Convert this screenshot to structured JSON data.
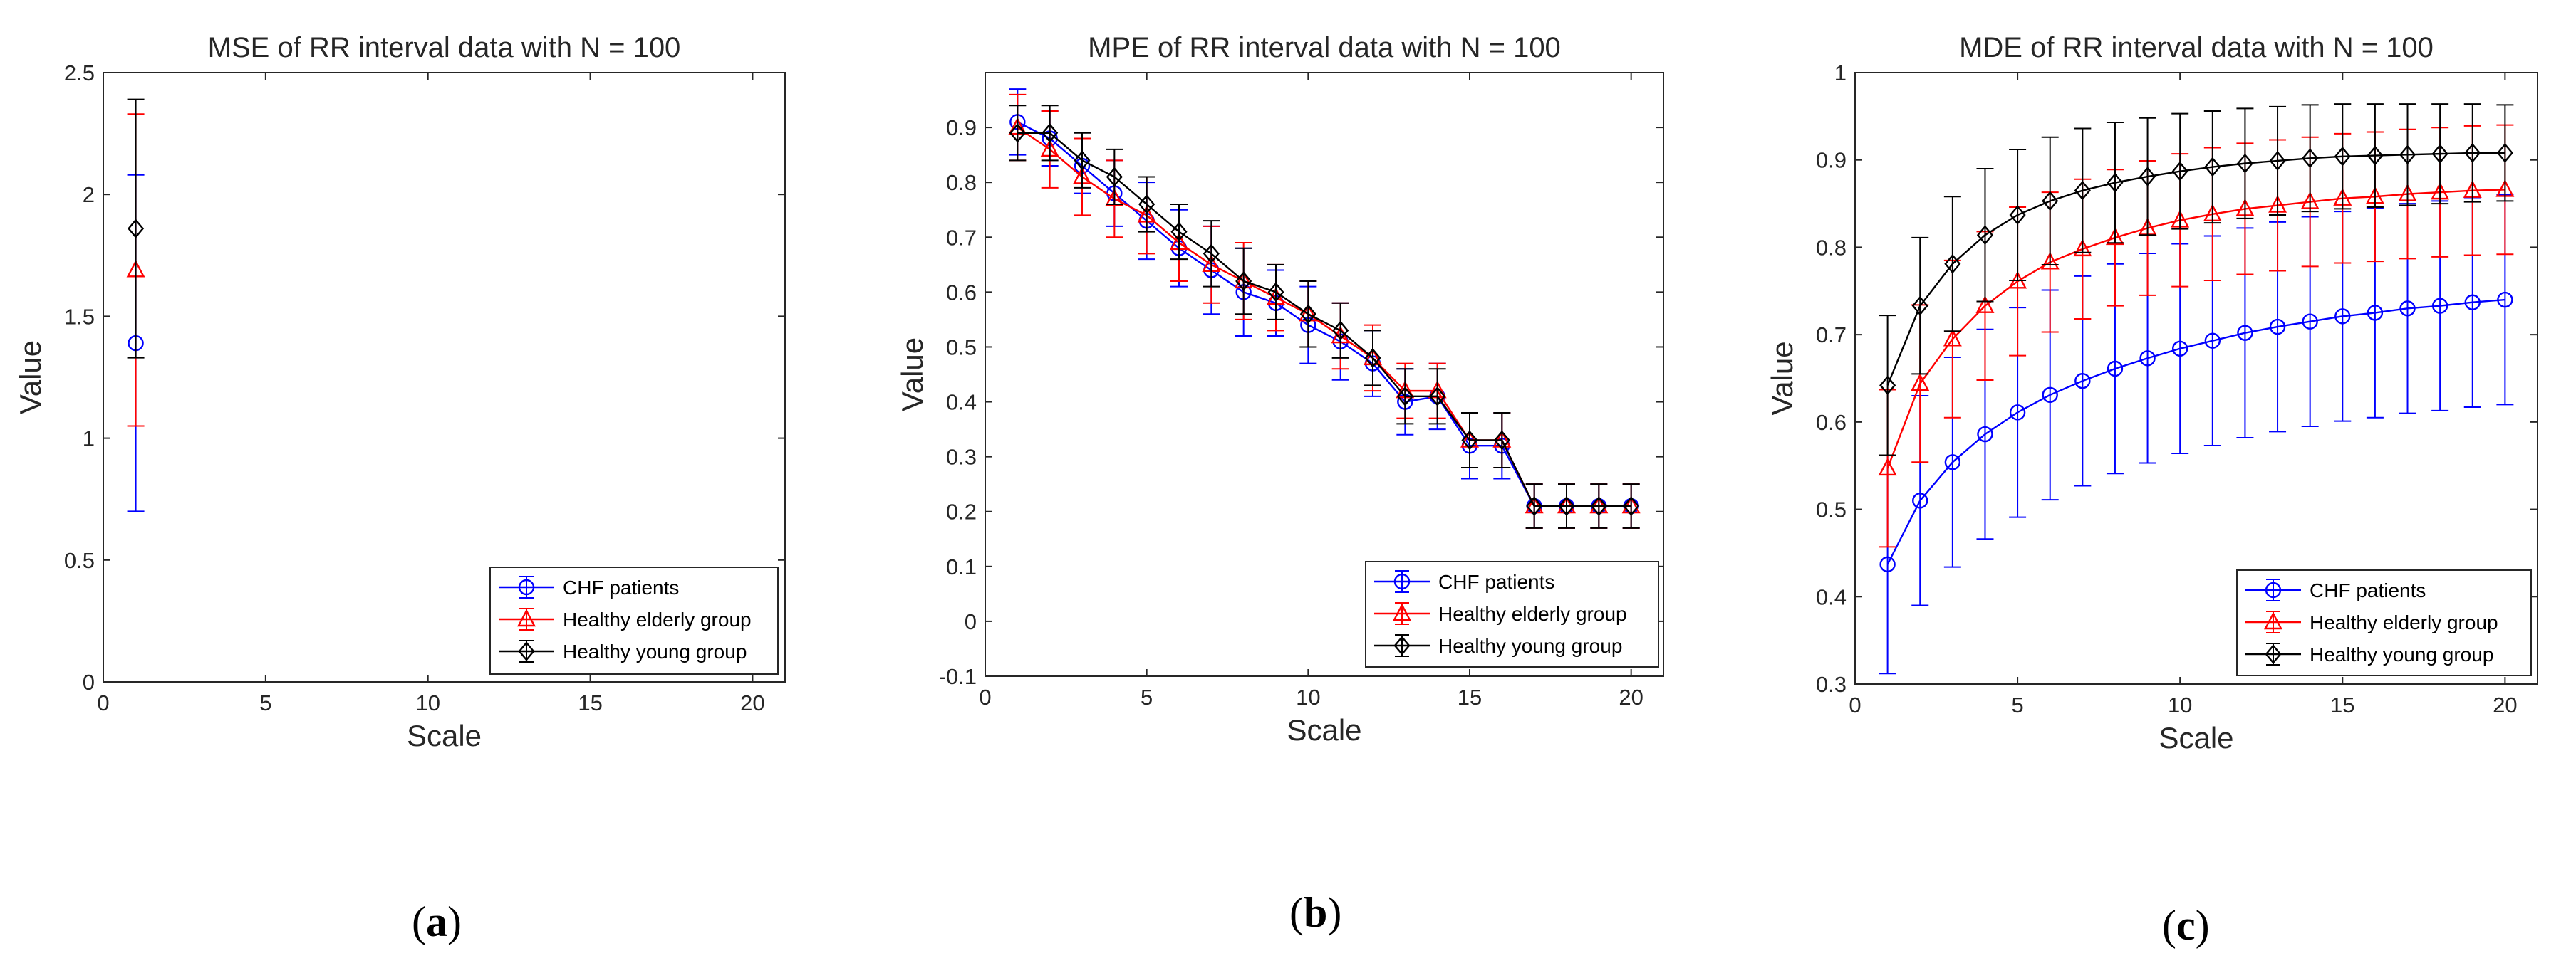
{
  "chart_data": [
    {
      "type": "line",
      "panel_label": "a",
      "title": "MSE of RR interval data with N = 100",
      "xlabel": "Scale",
      "ylabel": "Value",
      "xlim": [
        0,
        21
      ],
      "ylim": [
        0,
        2.5
      ],
      "xticks": [
        0,
        5,
        10,
        15,
        20
      ],
      "yticks": [
        0,
        0.5,
        1,
        1.5,
        2,
        2.5
      ],
      "ytick_labels": [
        "0",
        "0.5",
        "1",
        "1.5",
        "2",
        "2.5"
      ],
      "legend_position": "bottom-right",
      "x": [
        1
      ],
      "series": [
        {
          "name": "CHF patients",
          "color": "#0000ff",
          "marker": "circle",
          "values": [
            1.39
          ],
          "err": [
            0.69
          ]
        },
        {
          "name": "Healthy elderly group",
          "color": "#ff0000",
          "marker": "triangle",
          "values": [
            1.69
          ],
          "err": [
            0.64
          ]
        },
        {
          "name": "Healthy young group",
          "color": "#000000",
          "marker": "diamond",
          "values": [
            1.86
          ],
          "err": [
            0.53
          ]
        }
      ]
    },
    {
      "type": "line",
      "panel_label": "b",
      "title": "MPE of RR interval data with N = 100",
      "xlabel": "Scale",
      "ylabel": "Value",
      "xlim": [
        0,
        21
      ],
      "ylim": [
        -0.1,
        1.0
      ],
      "xticks": [
        0,
        5,
        10,
        15,
        20
      ],
      "yticks": [
        -0.1,
        0,
        0.1,
        0.2,
        0.3,
        0.4,
        0.5,
        0.6,
        0.7,
        0.8,
        0.9
      ],
      "ytick_labels": [
        "-0.1",
        "0",
        "0.1",
        "0.2",
        "0.3",
        "0.4",
        "0.5",
        "0.6",
        "0.7",
        "0.8",
        "0.9"
      ],
      "legend_position": "bottom-right",
      "x": [
        1,
        2,
        3,
        4,
        5,
        6,
        7,
        8,
        9,
        10,
        11,
        12,
        13,
        14,
        15,
        16,
        17,
        18,
        19,
        20
      ],
      "series": [
        {
          "name": "CHF patients",
          "color": "#0000ff",
          "marker": "circle",
          "values": [
            0.91,
            0.88,
            0.83,
            0.78,
            0.73,
            0.68,
            0.64,
            0.6,
            0.58,
            0.54,
            0.51,
            0.47,
            0.4,
            0.41,
            0.32,
            0.32,
            0.21,
            0.21,
            0.21,
            0.21
          ],
          "err": [
            0.06,
            0.05,
            0.05,
            0.06,
            0.07,
            0.07,
            0.08,
            0.08,
            0.06,
            0.07,
            0.07,
            0.06,
            0.06,
            0.06,
            0.06,
            0.06,
            0.04,
            0.04,
            0.04,
            0.04
          ]
        },
        {
          "name": "Healthy elderly group",
          "color": "#ff0000",
          "marker": "triangle",
          "values": [
            0.9,
            0.86,
            0.81,
            0.77,
            0.74,
            0.69,
            0.65,
            0.62,
            0.59,
            0.56,
            0.52,
            0.48,
            0.42,
            0.42,
            0.33,
            0.33,
            0.21,
            0.21,
            0.21,
            0.21
          ],
          "err": [
            0.06,
            0.07,
            0.07,
            0.07,
            0.07,
            0.07,
            0.07,
            0.07,
            0.06,
            0.06,
            0.06,
            0.06,
            0.05,
            0.05,
            0.05,
            0.05,
            0.04,
            0.04,
            0.04,
            0.04
          ]
        },
        {
          "name": "Healthy young group",
          "color": "#000000",
          "marker": "diamond",
          "values": [
            0.89,
            0.89,
            0.84,
            0.81,
            0.76,
            0.71,
            0.67,
            0.62,
            0.6,
            0.56,
            0.53,
            0.48,
            0.41,
            0.41,
            0.33,
            0.33,
            0.21,
            0.21,
            0.21,
            0.21
          ],
          "err": [
            0.05,
            0.05,
            0.05,
            0.05,
            0.05,
            0.05,
            0.06,
            0.06,
            0.05,
            0.06,
            0.05,
            0.05,
            0.05,
            0.05,
            0.05,
            0.05,
            0.04,
            0.04,
            0.04,
            0.04
          ]
        }
      ]
    },
    {
      "type": "line",
      "panel_label": "c",
      "title": "MDE of RR interval data with N = 100",
      "xlabel": "Scale",
      "ylabel": "Value",
      "xlim": [
        0,
        21
      ],
      "ylim": [
        0.3,
        1.0
      ],
      "xticks": [
        0,
        5,
        10,
        15,
        20
      ],
      "yticks": [
        0.3,
        0.4,
        0.5,
        0.6,
        0.7,
        0.8,
        0.9,
        1.0
      ],
      "ytick_labels": [
        "0.3",
        "0.4",
        "0.5",
        "0.6",
        "0.7",
        "0.8",
        "0.9",
        "1"
      ],
      "legend_position": "bottom-right",
      "x": [
        1,
        2,
        3,
        4,
        5,
        6,
        7,
        8,
        9,
        10,
        11,
        12,
        13,
        14,
        15,
        16,
        17,
        18,
        19,
        20
      ],
      "series": [
        {
          "name": "CHF patients",
          "color": "#0000ff",
          "marker": "circle",
          "values": [
            0.437,
            0.51,
            0.554,
            0.586,
            0.611,
            0.631,
            0.647,
            0.661,
            0.673,
            0.684,
            0.693,
            0.702,
            0.709,
            0.715,
            0.721,
            0.725,
            0.73,
            0.733,
            0.737,
            0.74
          ],
          "err": [
            0.125,
            0.12,
            0.12,
            0.12,
            0.12,
            0.12,
            0.12,
            0.12,
            0.12,
            0.12,
            0.12,
            0.12,
            0.12,
            0.12,
            0.12,
            0.12,
            0.12,
            0.12,
            0.12,
            0.12
          ]
        },
        {
          "name": "Healthy elderly group",
          "color": "#ff0000",
          "marker": "triangle",
          "values": [
            0.547,
            0.644,
            0.695,
            0.733,
            0.761,
            0.783,
            0.798,
            0.811,
            0.822,
            0.831,
            0.838,
            0.844,
            0.848,
            0.852,
            0.856,
            0.858,
            0.861,
            0.863,
            0.865,
            0.866
          ],
          "err": [
            0.09,
            0.09,
            0.09,
            0.085,
            0.085,
            0.08,
            0.08,
            0.078,
            0.077,
            0.076,
            0.076,
            0.075,
            0.075,
            0.074,
            0.074,
            0.074,
            0.074,
            0.074,
            0.074,
            0.074
          ]
        },
        {
          "name": "Healthy young group",
          "color": "#000000",
          "marker": "diamond",
          "values": [
            0.642,
            0.733,
            0.781,
            0.814,
            0.837,
            0.853,
            0.865,
            0.874,
            0.881,
            0.887,
            0.892,
            0.896,
            0.899,
            0.902,
            0.904,
            0.905,
            0.906,
            0.907,
            0.908,
            0.908
          ],
          "err": [
            0.08,
            0.078,
            0.077,
            0.076,
            0.075,
            0.073,
            0.071,
            0.069,
            0.067,
            0.066,
            0.064,
            0.063,
            0.062,
            0.061,
            0.06,
            0.059,
            0.058,
            0.057,
            0.056,
            0.055
          ]
        }
      ]
    }
  ]
}
